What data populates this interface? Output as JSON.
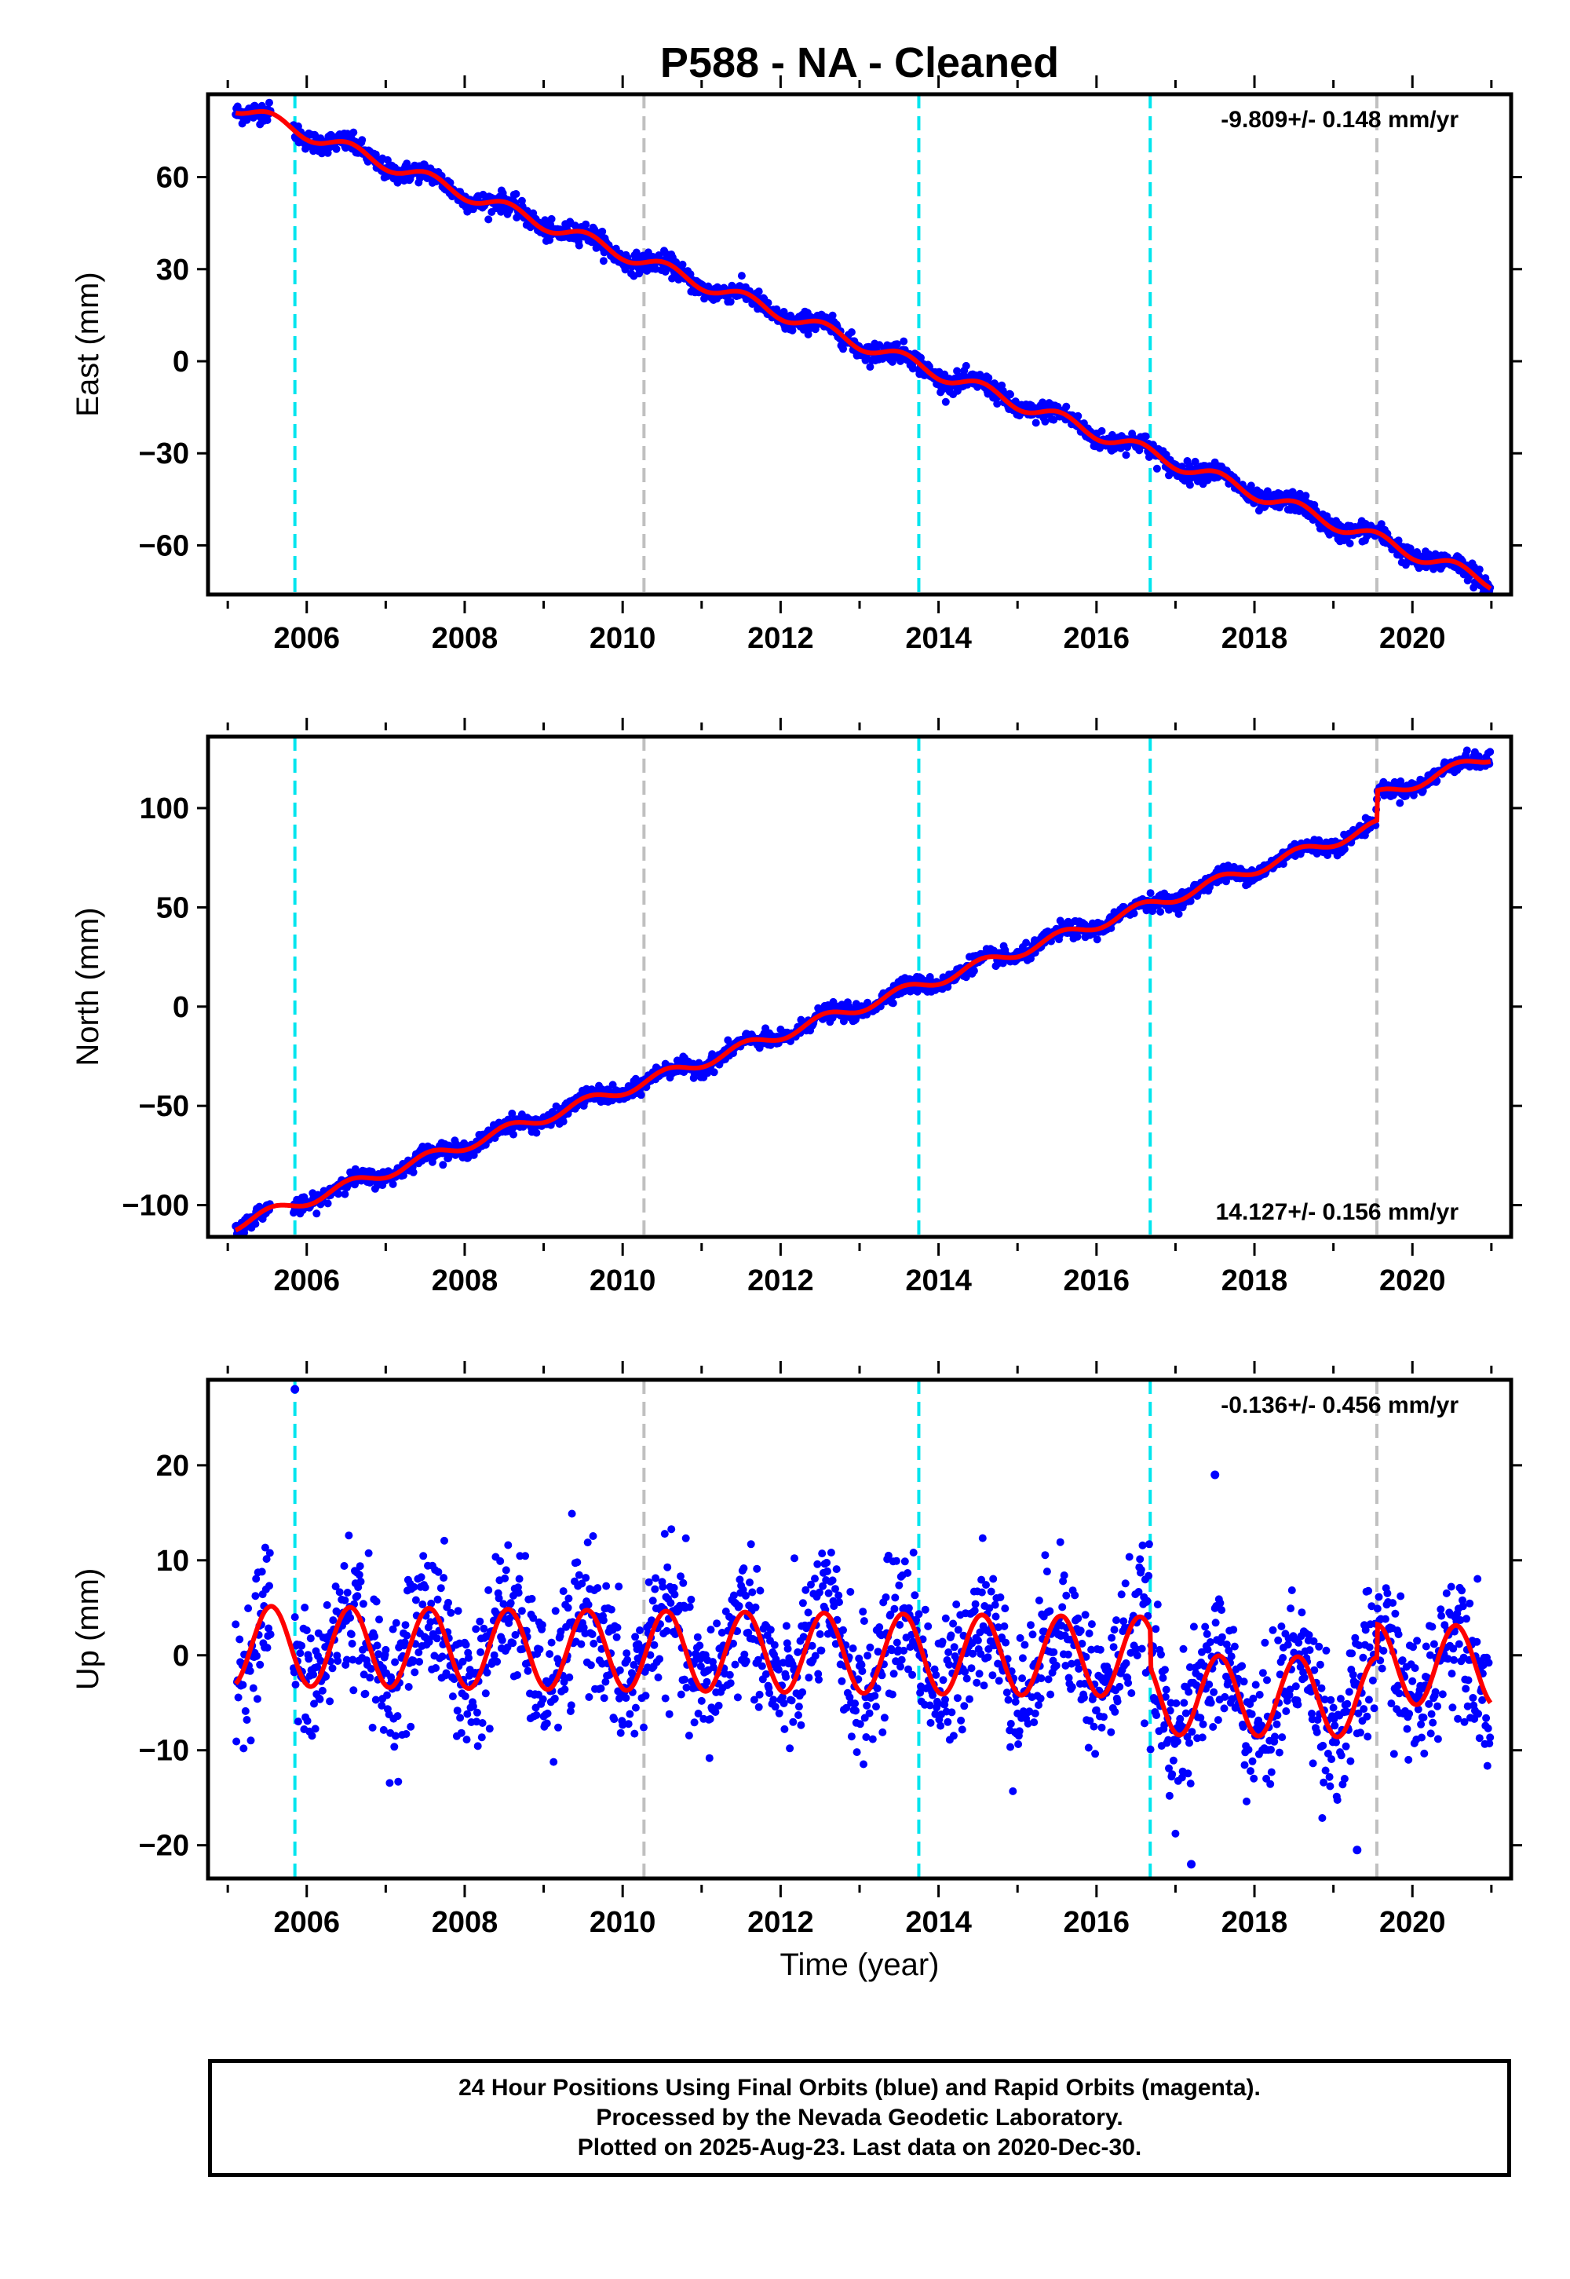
{
  "title": "P588  - NA - Cleaned",
  "xlabel": "Time (year)",
  "x_tick_labels": [
    "2006",
    "2008",
    "2010",
    "2012",
    "2014",
    "2016",
    "2018",
    "2020"
  ],
  "footer": {
    "line1": "24 Hour Positions Using Final Orbits (blue) and Rapid Orbits (magenta).",
    "line2": "Processed by the Nevada Geodetic Laboratory.",
    "line3": "Plotted on 2025-Aug-23. Last data on 2020-Dec-30."
  },
  "colors": {
    "data_points": "#0000ff",
    "model_fit": "#ff0000",
    "equipment_change_lines": "#00e5ee",
    "other_event_lines": "#c0c0c0"
  },
  "chart_data": [
    {
      "type": "scatter",
      "component": "East",
      "ylabel": "East (mm)",
      "rate_label": "-9.809+/- 0.148 mm/yr",
      "rate_label_position": "top-right",
      "xlim": [
        2004.75,
        2021.25
      ],
      "ylim": [
        -76,
        87
      ],
      "yticks": [
        60,
        30,
        0,
        -30,
        -60
      ],
      "ytick_labels": [
        "60",
        "30",
        "0",
        "−30",
        "−60"
      ],
      "event_lines": [
        {
          "x": 2005.85,
          "kind": "equipment"
        },
        {
          "x": 2010.27,
          "kind": "other"
        },
        {
          "x": 2013.75,
          "kind": "equipment"
        },
        {
          "x": 2016.68,
          "kind": "equipment"
        },
        {
          "x": 2019.55,
          "kind": "other"
        }
      ],
      "trend": {
        "start_x": 2005.1,
        "end_x": 2020.99,
        "start_y": 83,
        "end_y": -72,
        "seasonal_amp": 2.2,
        "offsets": [],
        "noise": 1.6
      },
      "series": [
        {
          "values": []
        }
      ]
    },
    {
      "type": "scatter",
      "component": "North",
      "ylabel": "North (mm)",
      "rate_label": "14.127+/- 0.156 mm/yr",
      "rate_label_position": "bottom-right",
      "xlim": [
        2004.75,
        2021.25
      ],
      "ylim": [
        -116,
        136
      ],
      "yticks": [
        100,
        50,
        0,
        -50,
        -100
      ],
      "ytick_labels": [
        "100",
        "50",
        "0",
        "−50",
        "−100"
      ],
      "event_lines": [
        {
          "x": 2005.85,
          "kind": "equipment"
        },
        {
          "x": 2010.27,
          "kind": "other"
        },
        {
          "x": 2013.75,
          "kind": "equipment"
        },
        {
          "x": 2016.68,
          "kind": "equipment"
        },
        {
          "x": 2019.55,
          "kind": "other"
        }
      ],
      "trend": {
        "start_x": 2005.1,
        "end_x": 2020.99,
        "start_y": -110,
        "end_y": 111,
        "seasonal_amp": 2.8,
        "offsets": [
          {
            "x": 2019.55,
            "dy": 15
          }
        ],
        "noise": 2.0
      },
      "series": [
        {
          "values": []
        }
      ]
    },
    {
      "type": "scatter",
      "component": "Up",
      "ylabel": "Up (mm)",
      "rate_label": "-0.136+/- 0.456 mm/yr",
      "rate_label_position": "top-right",
      "xlim": [
        2004.75,
        2021.25
      ],
      "ylim": [
        -23.5,
        29
      ],
      "yticks": [
        20,
        10,
        0,
        -10,
        -20
      ],
      "ytick_labels": [
        "20",
        "10",
        "0",
        "−10",
        "−20"
      ],
      "event_lines": [
        {
          "x": 2005.85,
          "kind": "equipment"
        },
        {
          "x": 2010.27,
          "kind": "other"
        },
        {
          "x": 2013.75,
          "kind": "equipment"
        },
        {
          "x": 2016.68,
          "kind": "equipment"
        },
        {
          "x": 2019.55,
          "kind": "other"
        }
      ],
      "trend": {
        "start_x": 2005.1,
        "end_x": 2020.99,
        "start_y": 1.0,
        "end_y": -0.6,
        "seasonal_amp": 4.2,
        "offsets": [
          {
            "x": 2016.68,
            "dy": -4
          },
          {
            "x": 2019.55,
            "dy": 3.5
          }
        ],
        "noise": 3.6
      },
      "outliers": [
        {
          "x": 2005.85,
          "y": 28
        },
        {
          "x": 2017.5,
          "y": 19
        },
        {
          "x": 2017.2,
          "y": -22
        },
        {
          "x": 2019.3,
          "y": -20.5
        }
      ],
      "series": [
        {
          "values": []
        }
      ]
    }
  ]
}
